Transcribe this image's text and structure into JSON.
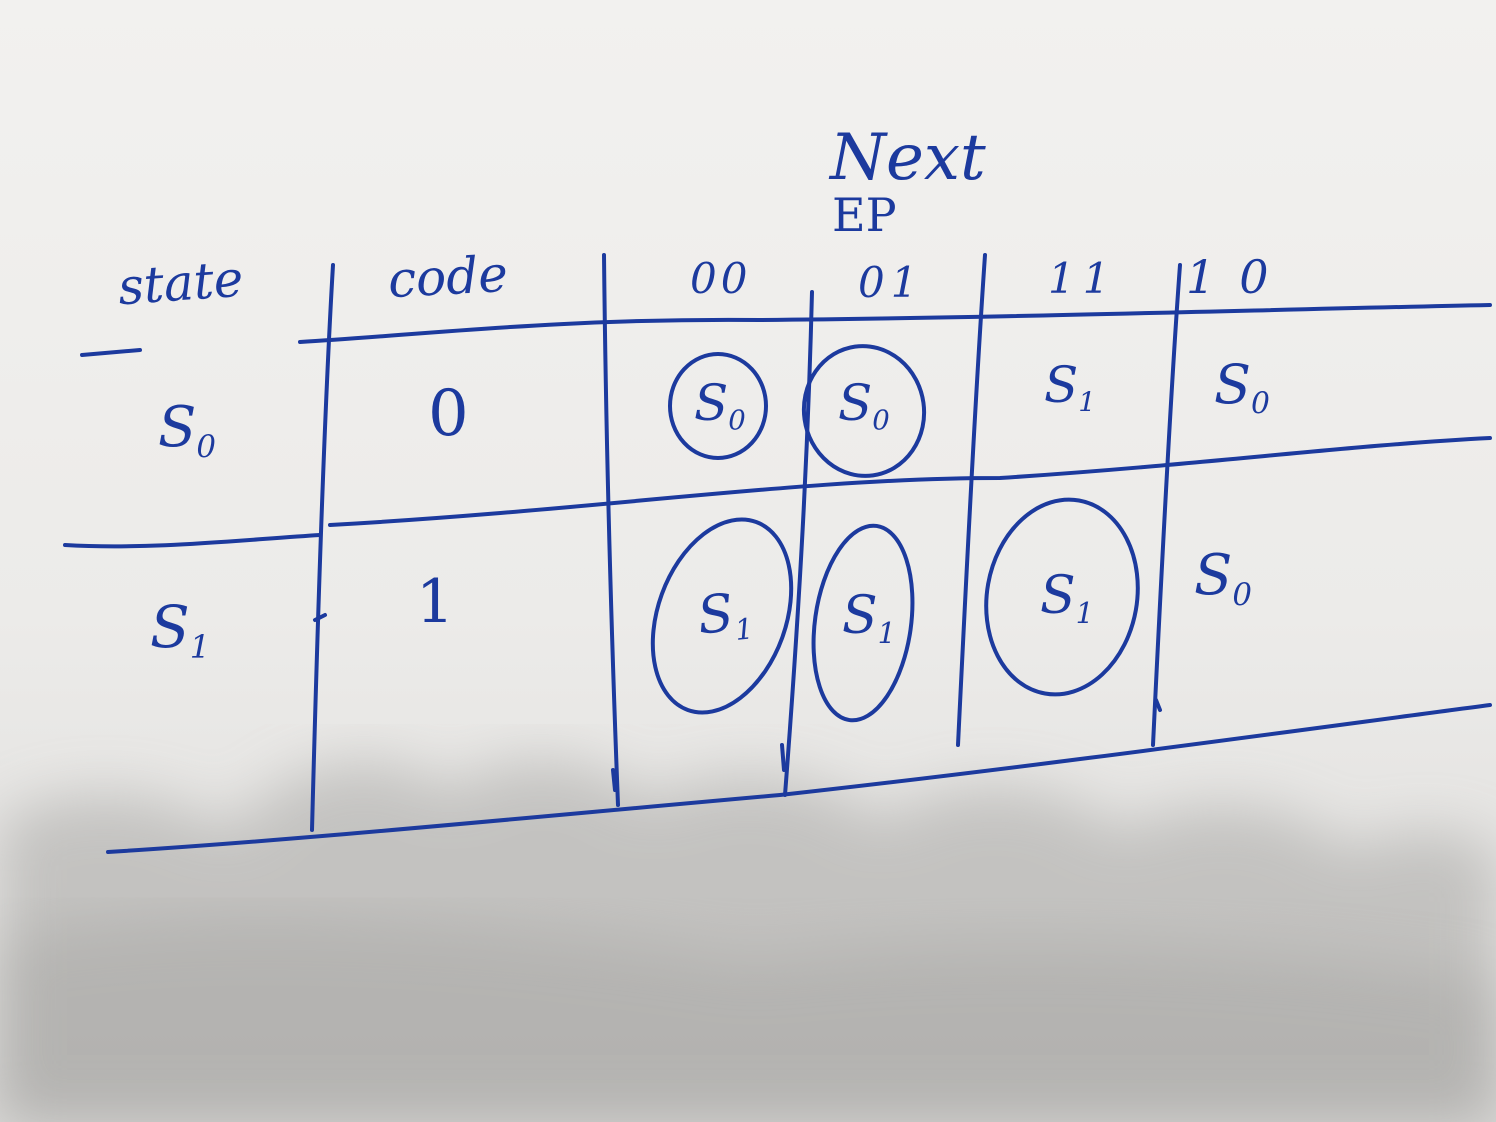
{
  "table": {
    "title_line1": "Next",
    "title_line2": "EP",
    "header": {
      "state": "state",
      "code": "code",
      "col_00": "00",
      "col_01": "01",
      "col_11": "11",
      "col_10": "10"
    },
    "rows": [
      {
        "state": "S",
        "state_sub": "0",
        "code": "0",
        "cells": [
          {
            "main": "S",
            "sub": "0",
            "circled": true
          },
          {
            "main": "S",
            "sub": "0",
            "circled": true
          },
          {
            "main": "S",
            "sub": "1",
            "circled": false
          },
          {
            "main": "S",
            "sub": "0",
            "circled": false
          }
        ]
      },
      {
        "state": "S",
        "state_sub": "1",
        "code": "1",
        "cells": [
          {
            "main": "S",
            "sub": "1",
            "circled": true
          },
          {
            "main": "S",
            "sub": "1",
            "circled": true
          },
          {
            "main": "S",
            "sub": "1",
            "circled": true
          },
          {
            "main": "S",
            "sub": "0",
            "circled": false
          }
        ]
      }
    ]
  },
  "colors": {
    "ink": "#1c3a9e",
    "paper": "#f2f1ef",
    "shadow": "#b9b8b6"
  }
}
